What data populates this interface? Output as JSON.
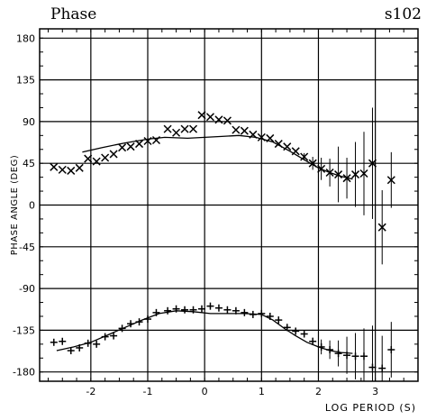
{
  "header": {
    "title": "Phase",
    "site": "s102"
  },
  "colors": {
    "ink": "#000000",
    "background": "#ffffff"
  },
  "chart_data": {
    "type": "scatter",
    "title": "Phase",
    "xlabel": "LOG PERIOD (S)",
    "ylabel": "PHASE ANGLE (DEG)",
    "xlim": [
      -2.9,
      3.75
    ],
    "ylim": [
      -190,
      190
    ],
    "grid": true,
    "x_ticks": [
      -2,
      -1,
      0,
      1,
      2,
      3
    ],
    "x_tick_labels": [
      "-2",
      "-1",
      "0",
      "1",
      "2",
      "3"
    ],
    "y_ticks": [
      180,
      135,
      90,
      45,
      0,
      -45,
      -90,
      -135,
      -180
    ],
    "y_tick_labels": [
      "180",
      "135",
      "90",
      "45",
      "0",
      "-45",
      "-90",
      "-135",
      "-180"
    ],
    "series": [
      {
        "marker": "x",
        "x": [
          -2.65,
          -2.5,
          -2.35,
          -2.2,
          -2.05,
          -1.9,
          -1.75,
          -1.6,
          -1.45,
          -1.3,
          -1.15,
          -1.0,
          -0.85,
          -0.65,
          -0.5,
          -0.35,
          -0.2,
          -0.05,
          0.1,
          0.25,
          0.4,
          0.55,
          0.7,
          0.85,
          1.0,
          1.15,
          1.3,
          1.45,
          1.6,
          1.75,
          1.9,
          2.05,
          2.2,
          2.35,
          2.5,
          2.65,
          2.8,
          2.95,
          3.12,
          3.28
        ],
        "y": [
          41,
          38,
          37,
          40,
          50,
          47,
          51,
          55,
          62,
          63,
          66,
          69,
          70,
          82,
          78,
          82,
          82,
          97,
          95,
          92,
          91,
          81,
          80,
          76,
          73,
          72,
          66,
          63,
          58,
          52,
          45,
          39,
          35,
          33,
          29,
          33,
          34,
          45,
          -24,
          27
        ],
        "yerr": [
          0,
          0,
          0,
          0,
          0,
          0,
          0,
          0,
          0,
          0,
          0,
          0,
          0,
          0,
          0,
          0,
          0,
          0,
          0,
          0,
          0,
          0,
          0,
          0,
          0,
          0,
          0,
          0,
          0,
          4,
          7,
          12,
          15,
          30,
          22,
          35,
          45,
          60,
          40,
          30
        ]
      },
      {
        "marker": "+",
        "x": [
          -2.65,
          -2.5,
          -2.35,
          -2.2,
          -2.05,
          -1.9,
          -1.75,
          -1.6,
          -1.45,
          -1.3,
          -1.15,
          -1.0,
          -0.85,
          -0.65,
          -0.5,
          -0.35,
          -0.2,
          -0.05,
          0.1,
          0.25,
          0.4,
          0.55,
          0.7,
          0.85,
          1.0,
          1.15,
          1.3,
          1.45,
          1.6,
          1.75,
          1.9,
          2.05,
          2.2,
          2.35,
          2.5,
          2.65,
          2.8,
          2.95,
          3.12,
          3.28
        ],
        "y": [
          -148,
          -147,
          -157,
          -154,
          -149,
          -150,
          -142,
          -141,
          -133,
          -128,
          -126,
          -123,
          -116,
          -114,
          -112,
          -113,
          -113,
          -112,
          -109,
          -111,
          -113,
          -114,
          -116,
          -118,
          -117,
          -120,
          -124,
          -132,
          -136,
          -139,
          -147,
          -153,
          -156,
          -160,
          -162,
          -163,
          -163,
          -175,
          -176,
          -156
        ],
        "yerr": [
          0,
          0,
          0,
          0,
          0,
          0,
          0,
          0,
          0,
          0,
          0,
          0,
          0,
          0,
          0,
          0,
          0,
          0,
          0,
          0,
          0,
          0,
          0,
          0,
          0,
          0,
          0,
          0,
          0,
          0,
          4,
          8,
          10,
          14,
          20,
          25,
          30,
          45,
          35,
          30
        ]
      }
    ],
    "fit_lines": [
      {
        "x": [
          -2.15,
          -1.8,
          -1.4,
          -1.0,
          -0.7,
          -0.3,
          0.0,
          0.3,
          0.6,
          0.9,
          1.2,
          1.5,
          1.8,
          2.0,
          2.2,
          2.4,
          2.6
        ],
        "y": [
          57,
          62,
          67,
          71,
          73,
          72,
          73,
          74,
          75,
          73,
          68,
          58,
          47,
          40,
          35,
          31,
          28
        ]
      },
      {
        "x": [
          -2.6,
          -2.3,
          -2.0,
          -1.7,
          -1.4,
          -1.1,
          -0.8,
          -0.5,
          -0.2,
          0.1,
          0.4,
          0.7,
          1.0,
          1.2,
          1.4,
          1.6,
          1.8,
          2.0,
          2.2,
          2.4,
          2.6
        ],
        "y": [
          -157,
          -153,
          -148,
          -140,
          -132,
          -124,
          -117,
          -114,
          -115,
          -117,
          -117,
          -117,
          -118,
          -124,
          -133,
          -141,
          -148,
          -153,
          -157,
          -159,
          -160
        ]
      }
    ]
  }
}
